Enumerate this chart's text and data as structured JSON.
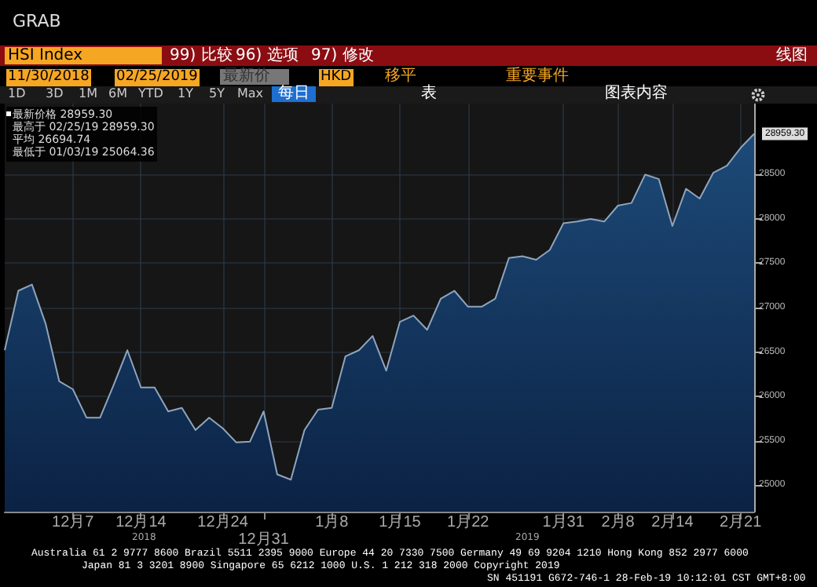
{
  "chart_data": {
    "type": "area",
    "title": "HSI Index",
    "categories": [
      null,
      null,
      null,
      null,
      null,
      "12月7",
      null,
      null,
      null,
      null,
      "12月14",
      null,
      null,
      null,
      null,
      null,
      "12月24",
      null,
      null,
      "12月31",
      null,
      null,
      null,
      null,
      "1月8",
      null,
      null,
      null,
      null,
      "1月15",
      null,
      null,
      null,
      null,
      "1月22",
      null,
      null,
      null,
      null,
      null,
      null,
      "1月31",
      null,
      null,
      null,
      "2月8",
      null,
      null,
      null,
      "2月14",
      null,
      null,
      null,
      null,
      "2月21",
      null
    ],
    "series": [
      {
        "color": "#1d4a78",
        "values": [
          26520,
          27190,
          27260,
          26820,
          26170,
          26080,
          25760,
          25760,
          26130,
          26520,
          26100,
          26100,
          25830,
          25870,
          25620,
          25760,
          25640,
          25480,
          25490,
          25830,
          25120,
          25060,
          25620,
          25850,
          25870,
          26450,
          26520,
          26680,
          26290,
          26840,
          26910,
          26750,
          27100,
          27190,
          27010,
          27010,
          27100,
          27560,
          27580,
          27540,
          27650,
          27950,
          27970,
          28000,
          27970,
          28150,
          28180,
          28500,
          28450,
          27920,
          28340,
          28230,
          28520,
          28600,
          28800,
          28959.3
        ],
        "value_labels": [
          null,
          null,
          null,
          null,
          null,
          null,
          null,
          null,
          null,
          null,
          null,
          null,
          null,
          null,
          null,
          null,
          null,
          null,
          null,
          null,
          null,
          null,
          null,
          null,
          null,
          null,
          null,
          null,
          null,
          null,
          null,
          null,
          null,
          null,
          null,
          null,
          null,
          null,
          null,
          null,
          null,
          null,
          null,
          null,
          null,
          null,
          null,
          null,
          null,
          null,
          null,
          null,
          null,
          null,
          null,
          "28959.30"
        ]
      }
    ],
    "ylim": [
      24700,
      29300
    ],
    "yticks": [
      25000,
      25500,
      26000,
      26500,
      27000,
      27500,
      28000,
      28500
    ],
    "grid": true,
    "marker": "none",
    "annotations": [
      "GRAB",
      "99) 比较",
      "96) 选项",
      "97) 修改",
      "线图",
      "11/30/2018",
      "02/25/2019",
      "最新价",
      "HKD",
      "移平",
      "重要事件",
      "1D",
      "3D",
      "1M",
      "6M",
      "YTD",
      "1Y",
      "5Y",
      "Max",
      "每日",
      "表",
      "图表内容",
      "最新价格 28959.30",
      "最高于 02/25/19 28959.30",
      "平均 26694.74",
      "最低于 01/03/19 25064.36",
      "2018",
      "2019",
      "Australia 61 2 9777 8600 Brazil 5511 2395 9000 Europe 44 20 7330 7500 Germany 49 69 9204 1210 Hong Kong 852 2977 6000",
      "Japan 81 3 3201 8900     Singapore 65 6212 1000     U.S. 1 212 318 2000     Copyright 2019",
      "SN 451191 G672-746-1 28-Feb-19 10:12:01 CST  GMT+8:00"
    ]
  }
}
